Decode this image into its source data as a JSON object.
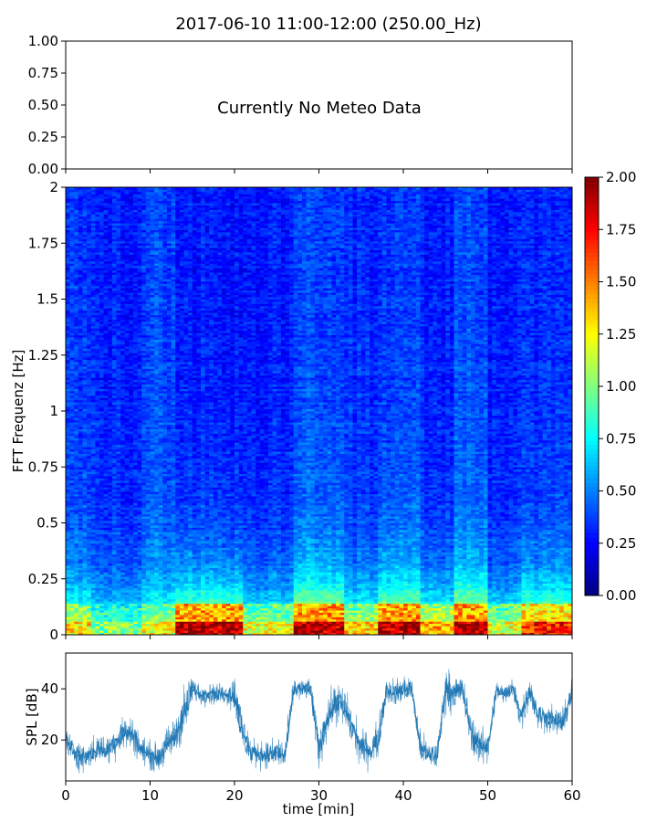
{
  "title": "2017-06-10 11:00-12:00 (250.00_Hz)",
  "chart_data": [
    {
      "type": "table",
      "panel": "meteo",
      "message": "Currently No Meteo Data",
      "ylim": [
        0,
        1
      ],
      "yticks": [
        "0.00",
        "0.25",
        "0.50",
        "0.75",
        "1.00"
      ],
      "xlim": [
        0,
        60
      ],
      "grid": false
    },
    {
      "type": "heatmap",
      "panel": "spectrogram",
      "ylabel": "FFT Frequenz [Hz]",
      "xlim": [
        0,
        60
      ],
      "ylim": [
        0,
        2
      ],
      "yticks": [
        "0",
        "0.25",
        "0.5",
        "0.75",
        "1",
        "1.25",
        "1.5",
        "1.75",
        "2"
      ],
      "colormap": "jet",
      "color_range": [
        0,
        2
      ],
      "colorbar_ticks": [
        "0.00",
        "0.25",
        "0.50",
        "0.75",
        "1.00",
        "1.25",
        "1.50",
        "1.75",
        "2.00"
      ],
      "description_note": "",
      "time_sections": [
        {
          "x": [
            0,
            3
          ],
          "low": 1.3,
          "level": 0.35
        },
        {
          "x": [
            3,
            9
          ],
          "low": 1.0,
          "level": 0.3
        },
        {
          "x": [
            9,
            13
          ],
          "low": 1.2,
          "level": 0.38
        },
        {
          "x": [
            13,
            19
          ],
          "low": 1.9,
          "level": 0.3
        },
        {
          "x": [
            19,
            21
          ],
          "low": 1.9,
          "level": 0.28
        },
        {
          "x": [
            21,
            27
          ],
          "low": 1.2,
          "level": 0.3
        },
        {
          "x": [
            27,
            33
          ],
          "low": 1.9,
          "level": 0.38
        },
        {
          "x": [
            33,
            37
          ],
          "low": 1.3,
          "level": 0.32
        },
        {
          "x": [
            37,
            42
          ],
          "low": 1.9,
          "level": 0.36
        },
        {
          "x": [
            42,
            46
          ],
          "low": 1.4,
          "level": 0.3
        },
        {
          "x": [
            46,
            50
          ],
          "low": 1.9,
          "level": 0.38
        },
        {
          "x": [
            50,
            54
          ],
          "low": 1.2,
          "level": 0.3
        },
        {
          "x": [
            54,
            60
          ],
          "low": 1.7,
          "level": 0.32
        }
      ],
      "grid": false
    },
    {
      "type": "line",
      "panel": "spl",
      "xlabel": "time [min]",
      "ylabel": "SPL [dB]",
      "xlim": [
        0,
        60
      ],
      "ylim": [
        4,
        54
      ],
      "xticks": [
        0,
        10,
        20,
        30,
        40,
        50,
        60
      ],
      "yticks": [
        20,
        40
      ],
      "line_color": "#1f77b4",
      "series": [
        {
          "x": [
            0,
            1,
            2,
            3,
            4,
            5,
            6,
            7,
            8,
            9,
            10,
            11,
            12,
            13,
            14,
            15,
            16,
            17,
            18,
            19,
            20,
            21,
            22,
            23,
            24,
            25,
            26,
            27,
            28,
            29,
            30,
            31,
            32,
            33,
            34,
            35,
            36,
            37,
            38,
            39,
            40,
            41,
            42,
            43,
            44,
            45,
            46,
            47,
            48,
            49,
            50,
            51,
            52,
            53,
            54,
            55,
            56,
            57,
            58,
            59,
            60
          ],
          "y": [
            20,
            15,
            13,
            15,
            17,
            16,
            20,
            23,
            22,
            16,
            14,
            13,
            18,
            22,
            30,
            40,
            38,
            38,
            38,
            38,
            38,
            22,
            15,
            15,
            14,
            15,
            14,
            40,
            40,
            40,
            16,
            29,
            35,
            33,
            24,
            17,
            16,
            20,
            40,
            38,
            40,
            40,
            17,
            14,
            14,
            40,
            38,
            40,
            23,
            18,
            17,
            39,
            38,
            40,
            29,
            40,
            29,
            29,
            27,
            27,
            40
          ],
          "noise": [
            4,
            4,
            4,
            4,
            4,
            4,
            5,
            5,
            5,
            4,
            4,
            4,
            5,
            6,
            8,
            4,
            3,
            3,
            3,
            3,
            6,
            7,
            4,
            4,
            4,
            4,
            5,
            3,
            3,
            3,
            6,
            6,
            6,
            6,
            6,
            5,
            5,
            5,
            4,
            4,
            4,
            3,
            5,
            4,
            4,
            6,
            5,
            4,
            6,
            5,
            5,
            3,
            3,
            3,
            5,
            4,
            4,
            4,
            4,
            4,
            5
          ]
        }
      ],
      "grid": false
    }
  ]
}
